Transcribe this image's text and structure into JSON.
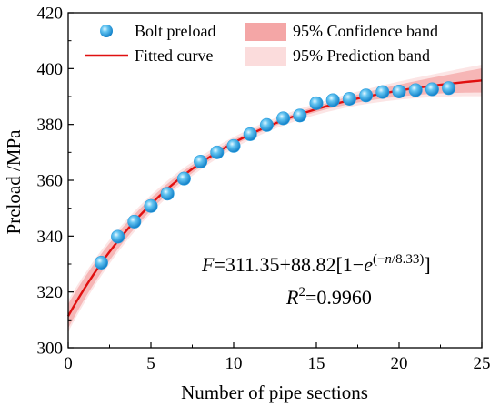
{
  "chart_data": {
    "type": "scatter",
    "xlabel": "Number of pipe sections",
    "ylabel": "Preload /MPa",
    "xlim": [
      0,
      25
    ],
    "ylim": [
      300,
      420
    ],
    "x_ticks": [
      0,
      5,
      10,
      15,
      20,
      25
    ],
    "y_ticks": [
      300,
      320,
      340,
      360,
      380,
      400,
      420
    ],
    "grid": false,
    "legend_position": "top",
    "legend": {
      "scatter": "Bolt preload",
      "line": "Fitted curve",
      "confidence": "95% Confidence band",
      "prediction": "95% Prediction band"
    },
    "series": [
      {
        "name": "Bolt preload",
        "type": "scatter",
        "color": "#2b9fe0",
        "x": [
          2,
          3,
          4,
          5,
          6,
          7,
          8,
          9,
          10,
          11,
          12,
          13,
          14,
          15,
          16,
          17,
          18,
          19,
          20,
          21,
          22,
          23
        ],
        "y": [
          330.5,
          339.8,
          345.2,
          350.8,
          355.2,
          360.6,
          366.7,
          370.0,
          372.3,
          376.5,
          379.8,
          382.2,
          383.2,
          387.6,
          388.7,
          389.2,
          390.4,
          391.6,
          391.8,
          392.3,
          392.6,
          393.0
        ]
      },
      {
        "name": "Fitted curve",
        "type": "line",
        "color": "#e01010",
        "model": {
          "a": 311.35,
          "b": 88.82,
          "c": 8.33
        }
      }
    ],
    "bands": {
      "confidence_color": "#f4a6a6",
      "prediction_color": "#fbdcdc"
    },
    "annotations": {
      "equation": {
        "F": "F",
        "rhs": "=311.35+88.82[1−",
        "e": "e",
        "exp_open": "(−",
        "exp_n": "n",
        "exp_close": "/8.33)",
        "close": "]"
      },
      "r2": {
        "R": "R",
        "sup": "2",
        "value": "=0.9960"
      }
    }
  }
}
